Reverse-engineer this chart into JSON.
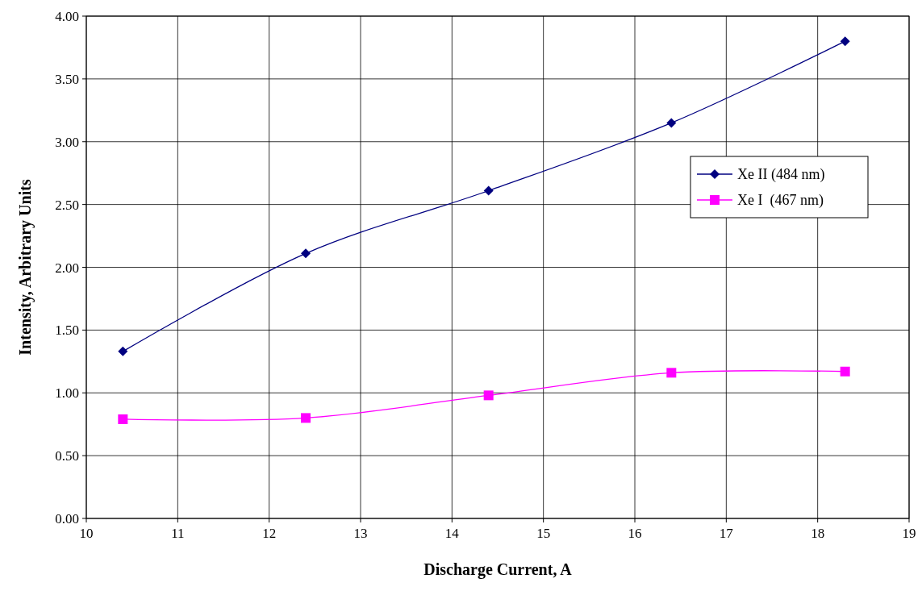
{
  "chart_data": {
    "type": "line",
    "xlabel": "Discharge Current, A",
    "ylabel": "Intensity, Arbitrary Units",
    "xlim": [
      10,
      19
    ],
    "xticks": [
      10,
      11,
      12,
      13,
      14,
      15,
      16,
      17,
      18,
      19
    ],
    "ylim": [
      0,
      4
    ],
    "yticks": [
      {
        "value": 0,
        "label": "0.00"
      },
      {
        "value": 0.5,
        "label": "0.50"
      },
      {
        "value": 1,
        "label": "1.00"
      },
      {
        "value": 1.5,
        "label": "1.50"
      },
      {
        "value": 2,
        "label": "2.00"
      },
      {
        "value": 2.5,
        "label": "2.50"
      },
      {
        "value": 3,
        "label": "3.00"
      },
      {
        "value": 3.5,
        "label": "3.50"
      },
      {
        "value": 4,
        "label": "4.00"
      }
    ],
    "grid": true,
    "legend": "right",
    "series": [
      {
        "name": "Xe II (484 nm)",
        "color": "#000080",
        "marker": "diamond",
        "x": [
          10.4,
          12.4,
          14.4,
          16.4,
          18.3
        ],
        "values": [
          1.33,
          2.11,
          2.61,
          3.15,
          3.8
        ]
      },
      {
        "name": "Xe I  (467 nm)",
        "color": "#ff00ff",
        "marker": "square",
        "x": [
          10.4,
          12.4,
          14.4,
          16.4,
          18.3
        ],
        "values": [
          0.79,
          0.8,
          0.98,
          1.16,
          1.17
        ]
      }
    ]
  }
}
